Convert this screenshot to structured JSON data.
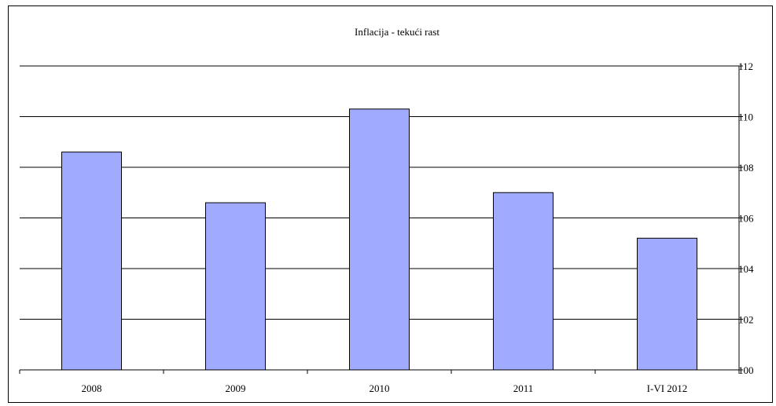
{
  "chart_data": {
    "type": "bar",
    "title": "Inflacija - tekući rast",
    "categories": [
      "2008",
      "2009",
      "2010",
      "2011",
      "I-VI 2012"
    ],
    "values": [
      108.6,
      106.6,
      110.3,
      107.0,
      105.2
    ],
    "xlabel": "",
    "ylabel": "",
    "ylim": [
      100,
      112
    ],
    "yticks": [
      "100",
      "102",
      "104",
      "106",
      "108",
      "110",
      "112"
    ],
    "y_axis_side": "right",
    "grid": true,
    "legend": "none",
    "colors": {
      "bar_fill": "#a0aaff",
      "bar_stroke": "#000000",
      "grid": "#000000"
    }
  }
}
